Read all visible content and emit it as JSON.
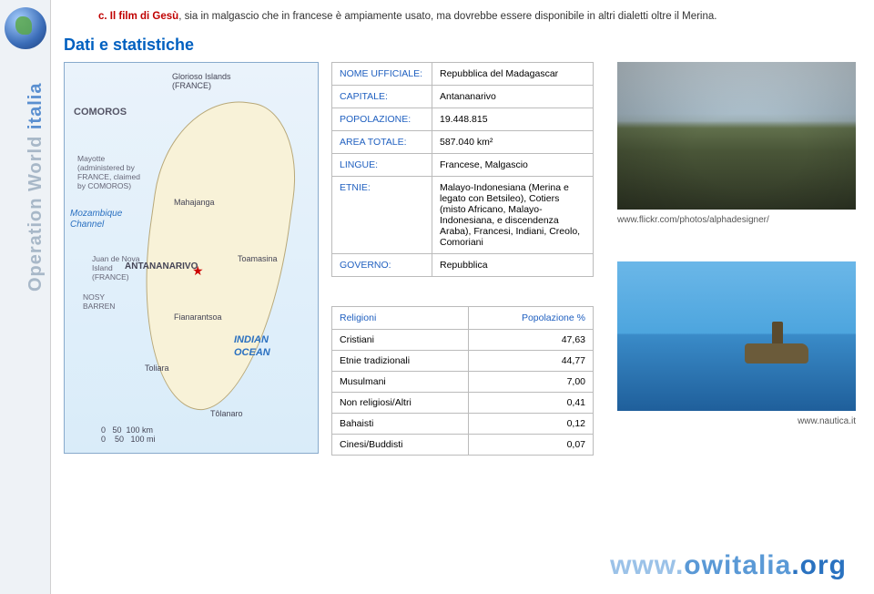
{
  "rail": {
    "brand1": "Operation World",
    "brand2": " italia"
  },
  "intro": {
    "lead": "c. Il film di Gesù",
    "rest": ", sia in malgascio che in francese è ampiamente usato, ma dovrebbe essere disponibile in altri dialetti oltre il Merina."
  },
  "section_title": "Dati e statistiche",
  "stats": {
    "rows": [
      {
        "k": "NOME UFFICIALE:",
        "v": "Repubblica del Madagascar"
      },
      {
        "k": "CAPITALE:",
        "v": "Antananarivo"
      },
      {
        "k": "POPOLAZIONE:",
        "v": "19.448.815"
      },
      {
        "k": "AREA TOTALE:",
        "v": "587.040 km²"
      },
      {
        "k": "LINGUE:",
        "v": "Francese, Malgascio"
      },
      {
        "k": "ETNIE:",
        "v": "Malayo-Indonesiana (Merina e legato con Betsileo), Cotiers (misto Africano, Malayo-Indonesiana, e discendenza Araba), Francesi, Indiani, Creolo, Comoriani"
      },
      {
        "k": "GOVERNO:",
        "v": "Repubblica"
      }
    ]
  },
  "photo1_credit": "www.flickr.com/photos/alphadesigner/",
  "religions": {
    "col1": "Religioni",
    "col2": "Popolazione %",
    "rows": [
      {
        "name": "Cristiani",
        "pct": "47,63"
      },
      {
        "name": "Etnie tradizionali",
        "pct": "44,77"
      },
      {
        "name": "Musulmani",
        "pct": "7,00"
      },
      {
        "name": "Non religiosi/Altri",
        "pct": "0,41"
      },
      {
        "name": "Bahaisti",
        "pct": "0,12"
      },
      {
        "name": "Cinesi/Buddisti",
        "pct": "0,07"
      }
    ]
  },
  "photo2_credit": "www.nautica.it",
  "map": {
    "comoros": "COMOROS",
    "mozambique1": "Mozambique",
    "mozambique2": "Channel",
    "capital": "ANTANANARIVO",
    "ocean1": "INDIAN",
    "ocean2": "OCEAN",
    "glorioso": "Glorioso Islands\n(FRANCE)",
    "mahajanga": "Mahajanga",
    "toamasina": "Toamasina",
    "fianar": "Fianarantsoa",
    "toliara": "Toliara",
    "tolanaro": "Tôlanaro",
    "nosy": "NOSY\nBARREN",
    "mayotte": "Mayotte\n(administered by\nFRANCE, claimed\nby COMOROS)",
    "juan": "Juan de Nova\nIsland\n(FRANCE)",
    "scale": "0   50  100 km\n0    50   100 mi"
  },
  "footer": {
    "p1": "www.",
    "p2": "owitalia",
    "p3": ".org"
  }
}
